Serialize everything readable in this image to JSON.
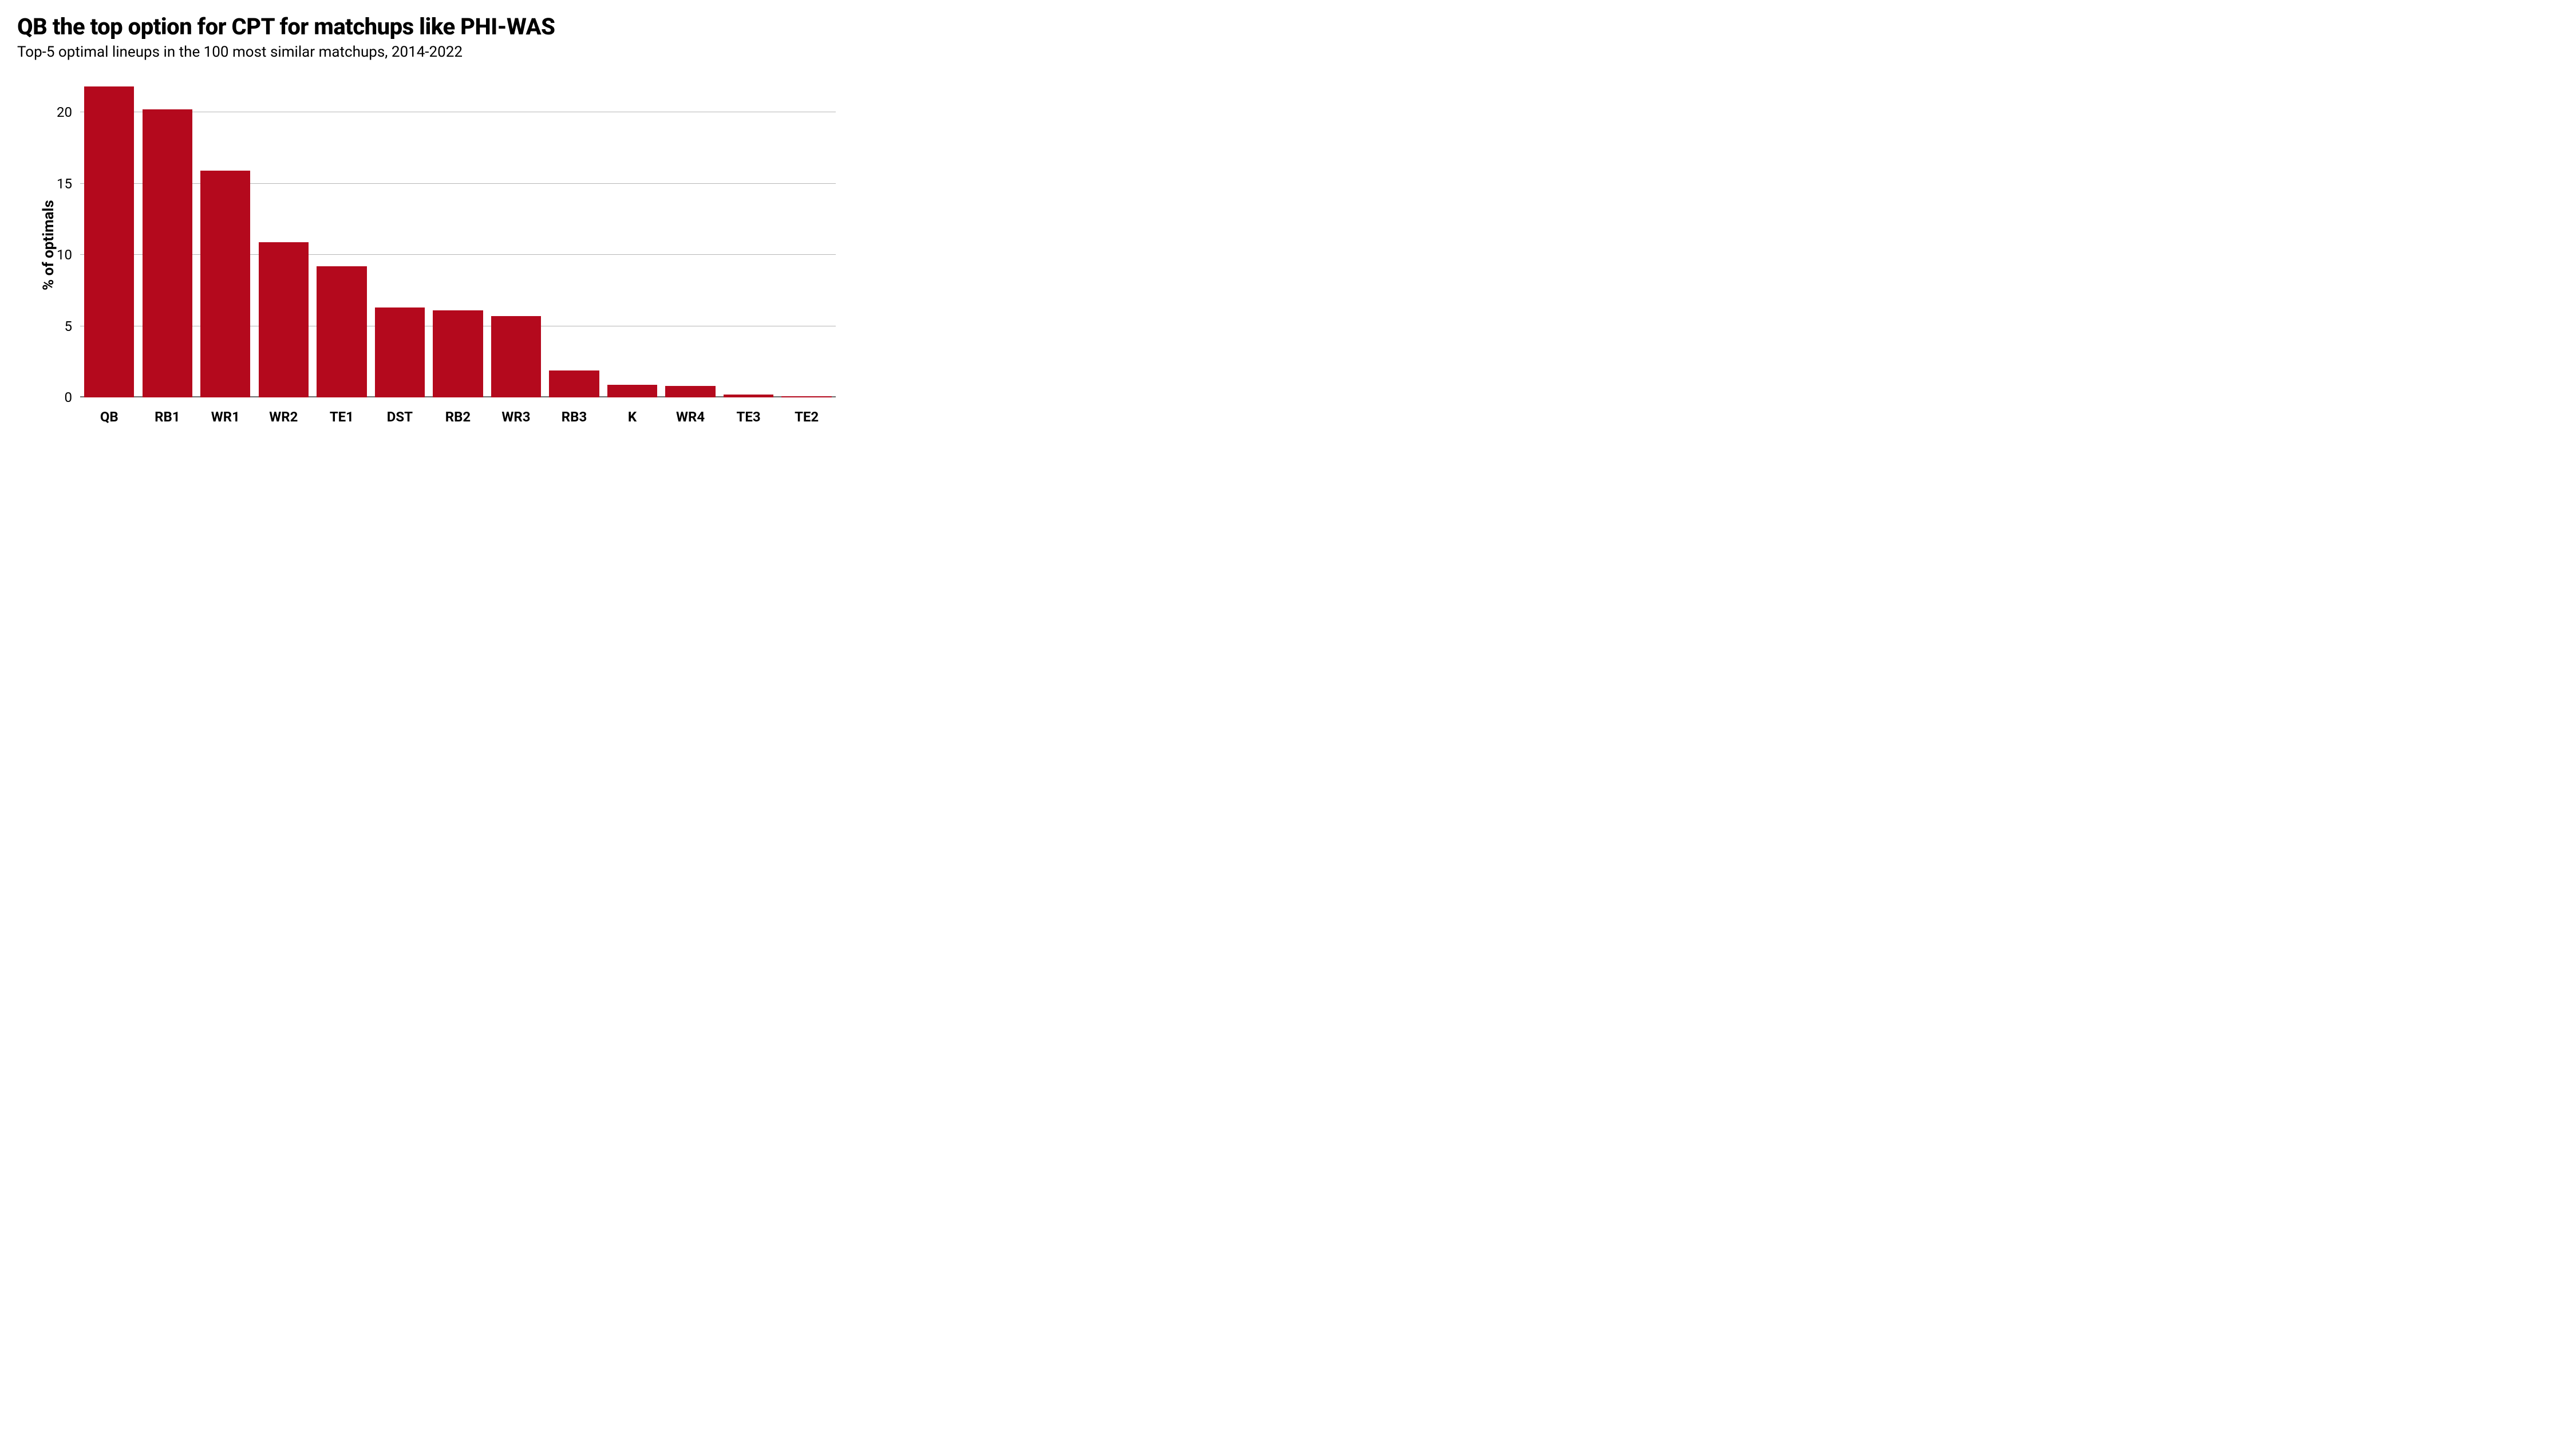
{
  "chart": {
    "type": "bar",
    "title": "QB the top option for CPT for matchups like PHI-WAS",
    "subtitle": "Top-5 optimal lineups in the 100 most similar matchups, 2014-2022",
    "ylabel": "% of optimals",
    "title_fontsize": 40,
    "title_fontweight": 800,
    "subtitle_fontsize": 26,
    "ylabel_fontsize": 26,
    "xlabel_fontsize": 24,
    "ytick_fontsize": 24,
    "categories": [
      "QB",
      "RB1",
      "WR1",
      "WR2",
      "TE1",
      "DST",
      "RB2",
      "WR3",
      "RB3",
      "K",
      "WR4",
      "TE3",
      "TE2"
    ],
    "values": [
      21.8,
      20.2,
      15.9,
      10.9,
      9.2,
      6.3,
      6.1,
      5.7,
      1.9,
      0.9,
      0.8,
      0.2,
      0.1
    ],
    "bar_color": "#b4091d",
    "background_color": "#ffffff",
    "grid_color": "#b6b6b6",
    "axis_line_color": "#6a6a6a",
    "text_color": "#000000",
    "ylim": [
      0,
      22.5
    ],
    "yticks": [
      0,
      5,
      10,
      15,
      20
    ],
    "bar_width": 0.86,
    "axis_line_width": 1.6,
    "grid_line_width": 1
  }
}
